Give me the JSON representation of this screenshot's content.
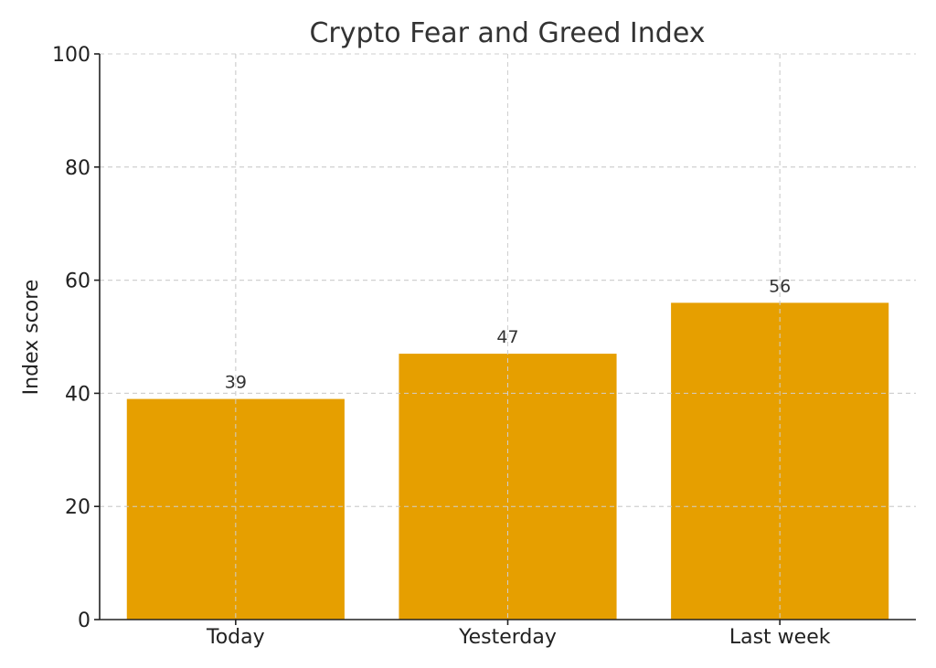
{
  "chart_data": {
    "type": "bar",
    "title": "Crypto Fear and Greed Index",
    "xlabel": "",
    "ylabel": "Index score",
    "categories": [
      "Today",
      "Yesterday",
      "Last week"
    ],
    "values": [
      39,
      47,
      56
    ],
    "data_labels": [
      "39",
      "47",
      "56"
    ],
    "ylim": [
      0,
      100
    ],
    "yticks": [
      0,
      20,
      40,
      60,
      80,
      100
    ],
    "ytick_labels": [
      "0",
      "20",
      "40",
      "60",
      "80",
      "100"
    ],
    "grid": true,
    "bar_color": "#E69F00"
  }
}
